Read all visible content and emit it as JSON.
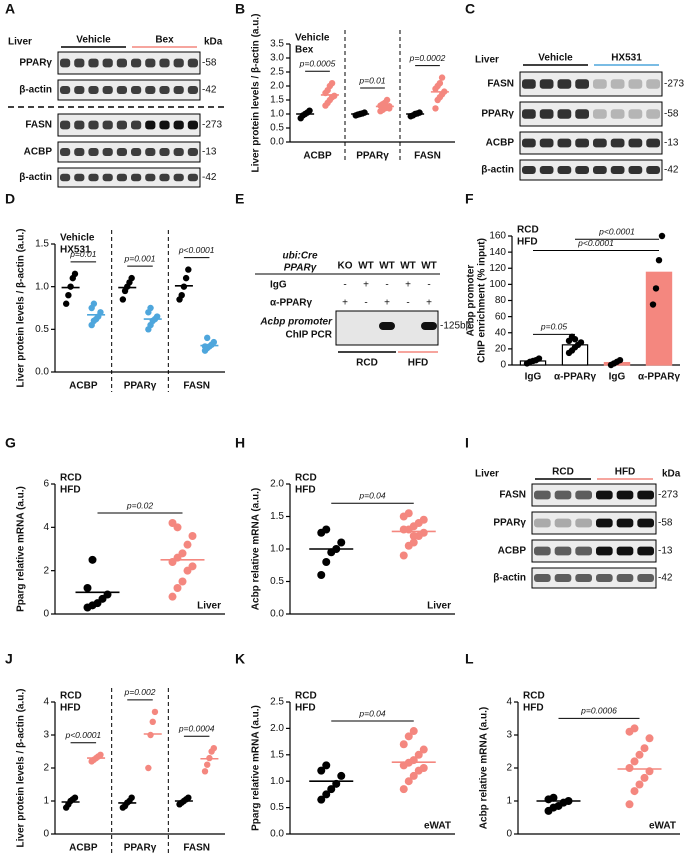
{
  "chart_data": [
    {
      "type": "dotplot",
      "panel": "B",
      "ylabel": "Liver protein levels / β-actin (a.u.)",
      "ylim": [
        0,
        3.5
      ],
      "yticks": [
        {
          "value": 0,
          "label": "0.0"
        },
        0.5,
        {
          "value": 1,
          "label": "1.0"
        },
        1.5,
        {
          "value": 2,
          "label": "2.0"
        },
        2.5,
        {
          "value": 3,
          "label": "3.0"
        },
        3.5
      ],
      "categories": [
        "ACBP",
        "PPARγ",
        "FASN"
      ],
      "dividers": true,
      "series": [
        {
          "name": "Vehicle",
          "color": "#000000",
          "values": [
            [
              0.85,
              0.95,
              1.0,
              1.05,
              1.12
            ],
            [
              0.95,
              0.98,
              1.0,
              1.02,
              1.05
            ],
            [
              0.92,
              0.95,
              1.0,
              1.02,
              1.05
            ]
          ],
          "means": [
            1.0,
            1.0,
            1.0
          ]
        },
        {
          "name": "Bex",
          "color": "#f4877f",
          "values": [
            [
              1.3,
              1.4,
              1.5,
              1.6,
              1.65,
              1.75,
              1.85,
              2.0,
              2.1
            ],
            [
              1.1,
              1.15,
              1.2,
              1.25,
              1.28,
              1.3,
              1.35,
              1.4,
              1.5,
              1.2
            ],
            [
              1.2,
              1.5,
              1.6,
              1.7,
              1.8,
              1.9,
              2.0,
              2.1,
              2.3
            ]
          ],
          "means": [
            1.68,
            1.27,
            1.79
          ]
        }
      ],
      "pvalues": [
        "p=0.0005",
        "p=0.01",
        "p=0.0002"
      ]
    },
    {
      "type": "dotplot",
      "panel": "D",
      "ylabel": "Liver protein levels / β-actin (a.u.)",
      "ylim": [
        0,
        1.5
      ],
      "yticks": [
        {
          "value": 0,
          "label": "0.0"
        },
        0.5,
        {
          "value": 1,
          "label": "1.0"
        },
        1.5
      ],
      "categories": [
        "ACBP",
        "PPARγ",
        "FASN"
      ],
      "dividers": true,
      "series": [
        {
          "name": "Vehicle",
          "color": "#000000",
          "values": [
            [
              0.8,
              0.9,
              1.0,
              1.1,
              1.15
            ],
            [
              0.85,
              0.95,
              1.0,
              1.05,
              1.1
            ],
            [
              0.85,
              0.9,
              1.0,
              1.1,
              1.2
            ]
          ],
          "means": [
            0.99,
            0.99,
            1.01
          ]
        },
        {
          "name": "HX531",
          "color": "#4ea6dc",
          "values": [
            [
              0.55,
              0.6,
              0.62,
              0.65,
              0.7,
              0.75,
              0.8
            ],
            [
              0.5,
              0.55,
              0.6,
              0.62,
              0.65,
              0.7,
              0.75
            ],
            [
              0.25,
              0.28,
              0.3,
              0.32,
              0.35,
              0.3,
              0.4
            ]
          ],
          "means": [
            0.67,
            0.62,
            0.31
          ]
        }
      ],
      "pvalues": [
        "p=0.01",
        "p=0.001",
        "p<0.0001"
      ]
    },
    {
      "type": "bar",
      "panel": "F",
      "ylabel": [
        "Acbp promoter",
        "ChIP enrichment (% input)"
      ],
      "ylim": [
        0,
        160
      ],
      "yticks": [
        0,
        20,
        40,
        60,
        80,
        100,
        120,
        140,
        160
      ],
      "point_color": "#000000",
      "series": [
        {
          "name": "RCD",
          "color": "#000000",
          "fill": "#ffffff",
          "categories": [
            "IgG",
            "α-PPARγ"
          ],
          "values": [
            5,
            25
          ],
          "points": [
            [
              2,
              4,
              5,
              6,
              8
            ],
            [
              15,
              18,
              22,
              25,
              28,
              30,
              35,
              32
            ]
          ]
        },
        {
          "name": "HFD",
          "color": "#f4877f",
          "fill": "#f4877f",
          "categories": [
            "IgG",
            "α-PPARγ"
          ],
          "values": [
            3,
            115
          ],
          "points": [
            [
              0,
              2,
              4,
              6
            ],
            [
              75,
              95,
              130,
              160
            ]
          ]
        }
      ],
      "pvalues": [
        "p=0.05",
        "p<0.0001",
        "p<0.0001"
      ]
    },
    {
      "type": "dotplot",
      "panel": "G",
      "ylabel": "Pparg relative mRNA (a.u.)",
      "ylim": [
        0,
        6
      ],
      "yticks": [
        0,
        2,
        4,
        6
      ],
      "tissue": "Liver",
      "series": [
        {
          "name": "RCD",
          "color": "#000000",
          "values": [
            0.3,
            0.4,
            0.5,
            0.7,
            0.9,
            1.2,
            2.5
          ],
          "means": 1.0
        },
        {
          "name": "HFD",
          "color": "#f4877f",
          "values": [
            0.8,
            1.2,
            1.5,
            2.0,
            2.2,
            2.4,
            2.6,
            2.8,
            3.2,
            3.6,
            4.2,
            4.0
          ],
          "means": 2.5
        }
      ],
      "pvalues": "p=0.02"
    },
    {
      "type": "dotplot",
      "panel": "H",
      "ylabel": "Acbp relative mRNA (a.u.)",
      "ylim": [
        0,
        2
      ],
      "yticks": [
        {
          "value": 0,
          "label": "0.0"
        },
        0.5,
        {
          "value": 1,
          "label": "1.0"
        },
        1.5,
        {
          "value": 2,
          "label": "2.0"
        }
      ],
      "tissue": "Liver",
      "series": [
        {
          "name": "RCD",
          "color": "#000000",
          "values": [
            0.6,
            0.8,
            0.95,
            1.0,
            1.1,
            1.25,
            1.3
          ],
          "means": 1.0
        },
        {
          "name": "HFD",
          "color": "#f4877f",
          "values": [
            0.9,
            1.05,
            1.1,
            1.2,
            1.25,
            1.3,
            1.3,
            1.35,
            1.4,
            1.45,
            1.5,
            1.55,
            1.2
          ],
          "means": 1.27
        }
      ],
      "pvalues": "p=0.04"
    },
    {
      "type": "dotplot",
      "panel": "J",
      "ylabel": "Liver protein levels / β-actin (a.u.)",
      "ylim": [
        0,
        4
      ],
      "yticks": [
        0,
        1,
        2,
        3,
        4
      ],
      "categories": [
        "ACBP",
        "PPARγ",
        "FASN"
      ],
      "dividers": true,
      "series": [
        {
          "name": "RCD",
          "color": "#000000",
          "values": [
            [
              0.8,
              0.9,
              1.0,
              1.05,
              1.1
            ],
            [
              0.8,
              0.85,
              0.95,
              1.0,
              1.1
            ],
            [
              0.9,
              0.95,
              1.0,
              1.05,
              1.1
            ]
          ],
          "means": [
            0.97,
            0.94,
            1.0
          ]
        },
        {
          "name": "HFD",
          "color": "#f4877f",
          "values": [
            [
              2.2,
              2.25,
              2.3,
              2.35,
              2.4
            ],
            [
              2.0,
              3.0,
              3.4,
              3.7
            ],
            [
              1.9,
              2.1,
              2.3,
              2.5,
              2.6
            ]
          ],
          "means": [
            2.3,
            3.03,
            2.28
          ]
        }
      ],
      "pvalues": [
        "p<0.0001",
        "p=0.002",
        "p=0.0004"
      ]
    },
    {
      "type": "dotplot",
      "panel": "K",
      "ylabel": "Pparg relative mRNA (a.u.)",
      "ylim": [
        0,
        2.5
      ],
      "yticks": [
        {
          "value": 0,
          "label": "0.0"
        },
        0.5,
        {
          "value": 1,
          "label": "1.0"
        },
        1.5,
        {
          "value": 2,
          "label": "2.0"
        },
        2.5
      ],
      "tissue": "eWAT",
      "series": [
        {
          "name": "RCD",
          "color": "#000000",
          "values": [
            0.65,
            0.75,
            0.85,
            0.95,
            1.1,
            1.2,
            1.3
          ],
          "means": 1.0
        },
        {
          "name": "HFD",
          "color": "#f4877f",
          "values": [
            0.85,
            1.0,
            1.1,
            1.2,
            1.25,
            1.3,
            1.35,
            1.4,
            1.5,
            1.6,
            1.7,
            1.85,
            1.95
          ],
          "means": 1.36
        }
      ],
      "pvalues": "p=0.04"
    },
    {
      "type": "dotplot",
      "panel": "L",
      "ylabel": "Acbp relative mRNA (a.u.)",
      "ylim": [
        0,
        4
      ],
      "yticks": [
        0,
        1,
        2,
        3,
        4
      ],
      "tissue": "eWAT",
      "series": [
        {
          "name": "RCD",
          "color": "#000000",
          "values": [
            0.7,
            0.8,
            0.85,
            0.95,
            1.0,
            1.05,
            1.1
          ],
          "means": 1.0
        },
        {
          "name": "HFD",
          "color": "#f4877f",
          "values": [
            0.9,
            1.3,
            1.5,
            1.7,
            1.9,
            2.0,
            2.2,
            2.4,
            2.6,
            2.9,
            3.1,
            3.2
          ],
          "means": 1.97
        }
      ],
      "pvalues": "p=0.0006"
    }
  ],
  "blots": [
    {
      "panel": "A",
      "header": "Liver",
      "unit": "kDa",
      "lanes": 10,
      "groups": [
        {
          "name": "Vehicle",
          "color": "#000000"
        },
        {
          "name": "Bex",
          "color": "#f4877f"
        }
      ],
      "rows": [
        {
          "label": "PPARγ",
          "size": "-58"
        },
        {
          "label": "β-actin",
          "size": "-42"
        },
        {
          "label": "FASN",
          "size": "-273"
        },
        {
          "label": "ACBP",
          "size": "-13"
        },
        {
          "label": "β-actin",
          "size": "-42"
        }
      ]
    },
    {
      "panel": "C",
      "header": "Liver",
      "lanes": 8,
      "groups": [
        {
          "name": "Vehicle",
          "color": "#000000"
        },
        {
          "name": "HX531",
          "color": "#4ea6dc"
        }
      ],
      "rows": [
        {
          "label": "FASN",
          "size": "-273"
        },
        {
          "label": "PPARγ",
          "size": "-58"
        },
        {
          "label": "ACBP",
          "size": "-13"
        },
        {
          "label": "β-actin",
          "size": "-42"
        }
      ]
    },
    {
      "panel": "I",
      "header": "Liver",
      "unit": "kDa",
      "lanes": 6,
      "groups": [
        {
          "name": "RCD",
          "color": "#000000"
        },
        {
          "name": "HFD",
          "color": "#f4877f"
        }
      ],
      "rows": [
        {
          "label": "FASN",
          "size": "-273"
        },
        {
          "label": "PPARγ",
          "size": "-58"
        },
        {
          "label": "ACBP",
          "size": "-13"
        },
        {
          "label": "β-actin",
          "size": "-42"
        }
      ]
    }
  ],
  "gel": {
    "panel": "E",
    "genotype": [
      "ubi:Cre",
      "PPARγ"
    ],
    "lanes": [
      {
        "label": "KO",
        "color": "#4ea6dc"
      },
      {
        "label": "WT",
        "color": "#000000"
      },
      {
        "label": "WT",
        "color": "#000000"
      },
      {
        "label": "WT",
        "color": "#000000"
      },
      {
        "label": "WT",
        "color": "#000000"
      }
    ],
    "rows": [
      {
        "label": "IgG",
        "signs": [
          "-",
          "+",
          "-",
          "+",
          "-"
        ]
      },
      {
        "label": "α-PPARγ",
        "signs": [
          "+",
          "-",
          "+",
          "-",
          "+"
        ]
      }
    ],
    "gel_label": [
      "Acbp promoter",
      "ChIP PCR"
    ],
    "size": "-125bp",
    "groups": [
      {
        "name": "RCD",
        "color": "#000000"
      },
      {
        "name": "HFD",
        "color": "#f4877f"
      }
    ]
  }
}
